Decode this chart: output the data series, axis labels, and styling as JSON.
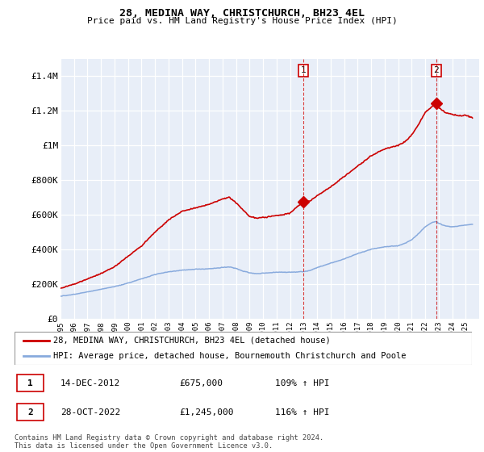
{
  "title1": "28, MEDINA WAY, CHRISTCHURCH, BH23 4EL",
  "title2": "Price paid vs. HM Land Registry's House Price Index (HPI)",
  "ylabel_ticks": [
    "£0",
    "£200K",
    "£400K",
    "£600K",
    "£800K",
    "£1M",
    "£1.2M",
    "£1.4M"
  ],
  "ylabel_values": [
    0,
    200000,
    400000,
    600000,
    800000,
    1000000,
    1200000,
    1400000
  ],
  "ylim": [
    0,
    1500000
  ],
  "xlim_start": 1995,
  "xlim_end": 2026,
  "xticks": [
    1995,
    1996,
    1997,
    1998,
    1999,
    2000,
    2001,
    2002,
    2003,
    2004,
    2005,
    2006,
    2007,
    2008,
    2009,
    2010,
    2011,
    2012,
    2013,
    2014,
    2015,
    2016,
    2017,
    2018,
    2019,
    2020,
    2021,
    2022,
    2023,
    2024,
    2025
  ],
  "bg_color": "#e8eef8",
  "grid_color": "#ffffff",
  "line1_color": "#cc0000",
  "line2_color": "#88aadd",
  "sale1_x": 2012.96,
  "sale1_y": 675000,
  "sale2_x": 2022.83,
  "sale2_y": 1245000,
  "legend1": "28, MEDINA WAY, CHRISTCHURCH, BH23 4EL (detached house)",
  "legend2": "HPI: Average price, detached house, Bournemouth Christchurch and Poole",
  "annot1_label": "1",
  "annot1_date": "14-DEC-2012",
  "annot1_price": "£675,000",
  "annot1_hpi": "109% ↑ HPI",
  "annot2_label": "2",
  "annot2_date": "28-OCT-2022",
  "annot2_price": "£1,245,000",
  "annot2_hpi": "116% ↑ HPI",
  "footer": "Contains HM Land Registry data © Crown copyright and database right 2024.\nThis data is licensed under the Open Government Licence v3.0."
}
